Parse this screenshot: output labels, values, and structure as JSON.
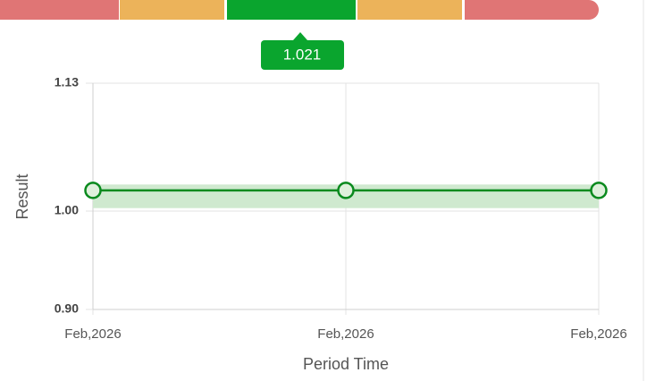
{
  "chart_data": {
    "type": "line",
    "badge": "1.021",
    "x_label": "Period Time",
    "y_label": "Result",
    "categories": [
      "Feb,2026",
      "Feb,2026",
      "Feb,2026"
    ],
    "series": [
      {
        "color": "#0a8a1e",
        "values": [
          1.021,
          1.021,
          1.021
        ]
      }
    ],
    "band": [
      1.003,
      1.027
    ],
    "band_color": "#cfe9cf",
    "ylim": [
      0.9,
      1.13
    ],
    "yticks": [
      {
        "value": 0.9,
        "label": "0.90"
      },
      {
        "value": 1,
        "label": "1.00"
      },
      1.13
    ],
    "grid": true
  }
}
